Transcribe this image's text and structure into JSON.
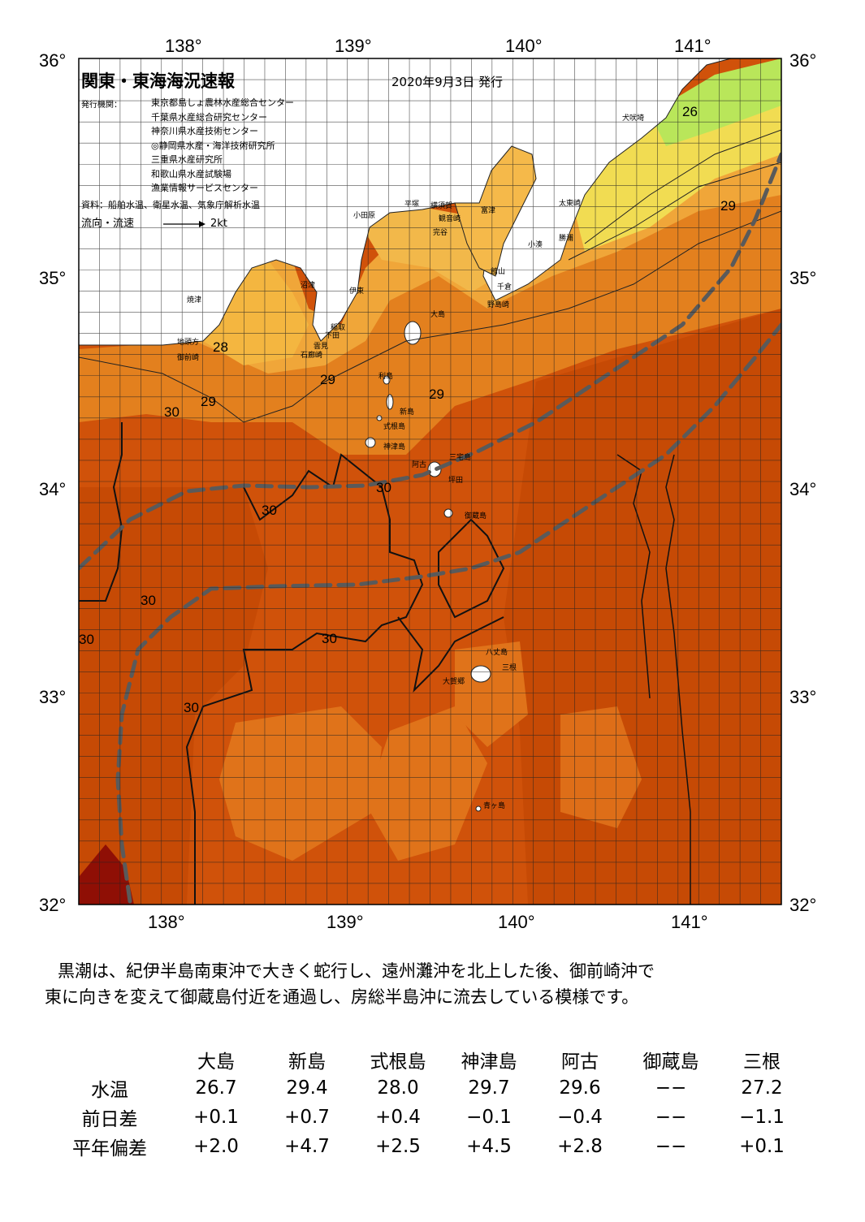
{
  "map": {
    "title": "関東・東海海況速報",
    "issue_date": "2020年9月3日 発行",
    "issuer_label": "発行機関：",
    "issuers": [
      "東京都島しょ農林水産総合センター",
      "千葉県水産総合研究センター",
      "神奈川県水産技術センター",
      "◎静岡県水産・海洋技術研究所",
      "三重県水産研究所",
      "和歌山県水産試験場",
      "漁業情報サービスセンター"
    ],
    "source": "資料：船舶水温、衛星水温、気象庁解析水温",
    "flow_legend": "流向・流速",
    "flow_scale": "2kt",
    "lon_labels": [
      "138°",
      "139°",
      "140°",
      "141°"
    ],
    "lat_labels": [
      "36°",
      "35°",
      "34°",
      "33°",
      "32°"
    ],
    "isotherm_labels": [
      "26",
      "28",
      "29",
      "30"
    ],
    "places": {
      "inubozaki": "犬吠埼",
      "taitomisaki": "太東崎",
      "katsuura": "勝浦",
      "kominato": "小湊",
      "tateyama": "館山",
      "chikura": "千倉",
      "nojimazaki": "野島崎",
      "futtsu": "富津",
      "yokosuka": "横須賀",
      "kannonzaki": "観音崎",
      "hiratsuka": "平塚",
      "odawara": "小田原",
      "kanaya": "完谷",
      "numazu": "沼津",
      "ito": "伊東",
      "yaizu": "焼津",
      "jitogata": "地頭方",
      "omaezaki": "御前崎",
      "inatori": "稲取",
      "shimoda": "下田",
      "irozaki": "石廊崎",
      "mera": "雲見",
      "oshima": "大島",
      "toshima": "利島",
      "niijima": "新島",
      "shikinejima": "式根島",
      "kozushima": "神津島",
      "miyakejima": "三宅島",
      "ako": "阿古",
      "tsubota": "坪田",
      "mikurajima": "御蔵島",
      "hachijojima": "八丈島",
      "mitsune": "三根",
      "okago": "大賀郷",
      "aogashima": "青ヶ島"
    },
    "colors": {
      "water_26": "#b9e65a",
      "water_27": "#f2e04b",
      "water_28": "#f4b33f",
      "water_29": "#e6861d",
      "water_30": "#d75a0c",
      "water_31": "#c84b06",
      "water_hot": "#8f0f05",
      "land": "#ffffff",
      "kuroshio": "#555555"
    }
  },
  "summary": {
    "line1": "黒潮は、紀伊半島南東沖で大きく蛇行し、遠州灘沖を北上した後、御前崎沖で",
    "line2": "東に向きを変えて御蔵島付近を通過し、房総半島沖に流去している模様です。"
  },
  "table": {
    "headers": [
      "大島",
      "新島",
      "式根島",
      "神津島",
      "阿古",
      "御蔵島",
      "三根"
    ],
    "rows": [
      {
        "label": "水温",
        "values": [
          "26.7",
          "29.4",
          "28.0",
          "29.7",
          "29.6",
          "−−",
          "27.2"
        ]
      },
      {
        "label": "前日差",
        "values": [
          "+0.1",
          "+0.7",
          "+0.4",
          "−0.1",
          "−0.4",
          "−−",
          "−1.1"
        ]
      },
      {
        "label": "平年偏差",
        "values": [
          "+2.0",
          "+4.7",
          "+2.5",
          "+4.5",
          "+2.8",
          "−−",
          "+0.1"
        ]
      }
    ]
  }
}
